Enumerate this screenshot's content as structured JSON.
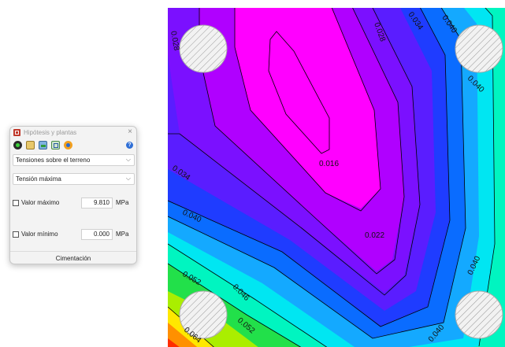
{
  "dialog": {
    "title": "Hipótesis y plantas",
    "close_label": "×",
    "help_label": "?",
    "toolbar_icons": [
      "display-mode-icon",
      "building-icon",
      "plan-view-icon",
      "section-view-icon",
      "color-scale-icon"
    ],
    "result_type": "Tensiones sobre el terreno",
    "stress_type": "Tensión máxima",
    "max_value": {
      "label": "Valor máximo",
      "value": "9.810",
      "unit": "MPa"
    },
    "min_value": {
      "label": "Valor mínimo",
      "value": "0.000",
      "unit": "MPa"
    },
    "footer": "Cimentación"
  },
  "plot": {
    "contour_labels": [
      "0.016",
      "0.022",
      "0.028",
      "0.034",
      "0.040",
      "0.046",
      "0.052",
      "0.064"
    ],
    "colors": {
      "magenta": "#ff00ff",
      "violet": "#b000ff",
      "purple": "#7b10ff",
      "blue_violet": "#5a1dff",
      "blue": "#1f3cff",
      "royal": "#0a6cff",
      "sky": "#14a9ff",
      "cyan": "#00e6f2",
      "aqua": "#00f5c0",
      "green": "#22e04a",
      "lime": "#aaee00",
      "yellow": "#ffe800",
      "orange": "#ff9000",
      "red": "#ff2d00"
    }
  }
}
